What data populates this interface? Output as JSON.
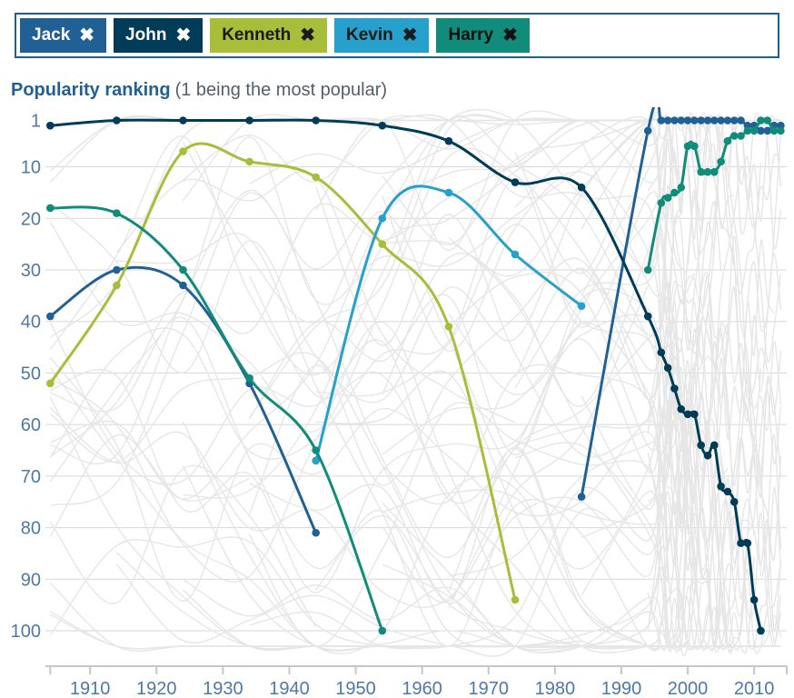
{
  "title": {
    "main": "Popularity ranking",
    "note": "(1 being the most popular)"
  },
  "tag_bar": {
    "border_color": "#1d5f92",
    "remove_icon": "✖",
    "tags": [
      {
        "label": "Jack",
        "bg": "#206095",
        "text_color": "#ffffff"
      },
      {
        "label": "John",
        "bg": "#003C57",
        "text_color": "#ffffff"
      },
      {
        "label": "Kenneth",
        "bg": "#A8BD3A",
        "text_color": "#1a1a1a"
      },
      {
        "label": "Kevin",
        "bg": "#27A0CC",
        "text_color": "#1a1a1a"
      },
      {
        "label": "Harry",
        "bg": "#118C7B",
        "text_color": "#111111"
      }
    ]
  },
  "chart_data": {
    "type": "line",
    "title": "Popularity ranking",
    "subtitle": "(1 being the most popular)",
    "xlabel": "",
    "ylabel": "",
    "y_axis_inverted": true,
    "ylim": [
      1,
      100
    ],
    "grid": true,
    "x": [
      1904,
      1914,
      1924,
      1934,
      1944,
      1954,
      1964,
      1974,
      1984,
      1994,
      1996,
      1997,
      1998,
      1999,
      2000,
      2001,
      2002,
      2003,
      2004,
      2005,
      2006,
      2007,
      2008,
      2009,
      2010,
      2011,
      2012,
      2013,
      2014
    ],
    "x_ticks": [
      1910,
      1920,
      1930,
      1940,
      1950,
      1960,
      1970,
      1980,
      1990,
      2000,
      2010
    ],
    "y_ticks": [
      1,
      10,
      20,
      30,
      40,
      50,
      60,
      70,
      80,
      90,
      100
    ],
    "series": [
      {
        "name": "Jack",
        "color": "#206095",
        "values": [
          39,
          30,
          33,
          52,
          81,
          null,
          null,
          null,
          74,
          3,
          1,
          1,
          1,
          1,
          1,
          1,
          1,
          1,
          1,
          1,
          1,
          1,
          1,
          2,
          2,
          3,
          3,
          2,
          2
        ]
      },
      {
        "name": "John",
        "color": "#003C57",
        "values": [
          2,
          1,
          1,
          1,
          1,
          2,
          5,
          13,
          14,
          39,
          46,
          49,
          53,
          57,
          58,
          58,
          64,
          66,
          64,
          72,
          73,
          75,
          83,
          83,
          94,
          100,
          null,
          null,
          null
        ]
      },
      {
        "name": "Kenneth",
        "color": "#A8BD3A",
        "values": [
          52,
          33,
          7,
          9,
          12,
          25,
          41,
          94,
          null,
          null,
          null,
          null,
          null,
          null,
          null,
          null,
          null,
          null,
          null,
          null,
          null,
          null,
          null,
          null,
          null,
          null,
          null,
          null,
          null
        ]
      },
      {
        "name": "Kevin",
        "color": "#27A0CC",
        "values": [
          null,
          null,
          null,
          null,
          67,
          20,
          15,
          27,
          37,
          null,
          null,
          null,
          null,
          null,
          null,
          null,
          null,
          null,
          null,
          null,
          null,
          null,
          null,
          null,
          null,
          null,
          null,
          null,
          null
        ]
      },
      {
        "name": "Harry",
        "color": "#118C7B",
        "values": [
          18,
          19,
          30,
          51,
          65,
          100,
          null,
          null,
          null,
          30,
          17,
          16,
          15,
          14,
          6,
          6,
          11,
          11,
          11,
          9,
          5,
          4,
          4,
          3,
          3,
          1,
          1,
          3,
          3
        ]
      }
    ],
    "background_lines": {
      "count": 90,
      "color": "#e6e6e6",
      "description": "other top-100 names shown as context"
    },
    "styles": {
      "gridline_color": "#d7d7d7",
      "axis_line_color": "#c6c6c6",
      "tick_label_color": "#4d79a6",
      "line_width": 3,
      "dot_radius": 4.3
    }
  }
}
